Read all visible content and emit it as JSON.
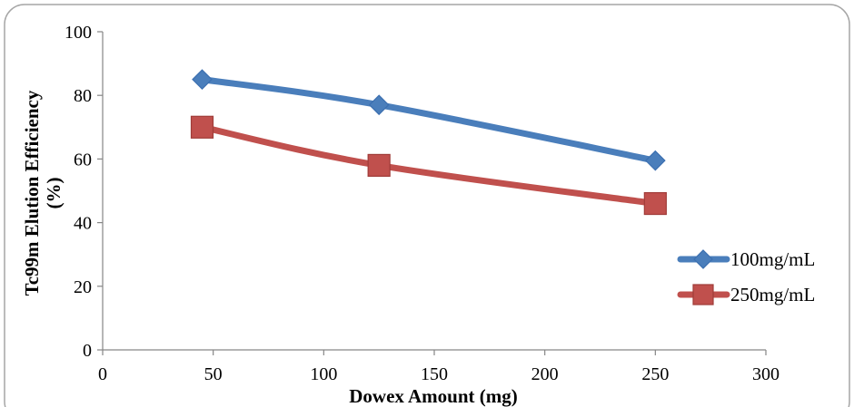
{
  "chart_data": {
    "type": "line",
    "title": "",
    "xlabel": "Dowex Amount (mg)",
    "ylabel_lines": [
      "Tc99m Elution Efficiency",
      "(%)"
    ],
    "xlim": [
      0,
      300
    ],
    "ylim": [
      0,
      100
    ],
    "xticks": [
      0,
      50,
      100,
      150,
      200,
      250,
      300
    ],
    "yticks": [
      0,
      20,
      40,
      60,
      80,
      100
    ],
    "grid": false,
    "legend_position": "right",
    "series": [
      {
        "name": "100mg/mL",
        "color": "#4a7ebb",
        "edge": "#3b6fb0",
        "marker": "diamond",
        "x": [
          45,
          125,
          250
        ],
        "y": [
          85,
          77,
          59.5
        ]
      },
      {
        "name": "250mg/mL",
        "color": "#c0504d",
        "edge": "#a03c39",
        "marker": "square",
        "x": [
          45,
          125,
          250
        ],
        "y": [
          70,
          58,
          46
        ]
      }
    ]
  }
}
